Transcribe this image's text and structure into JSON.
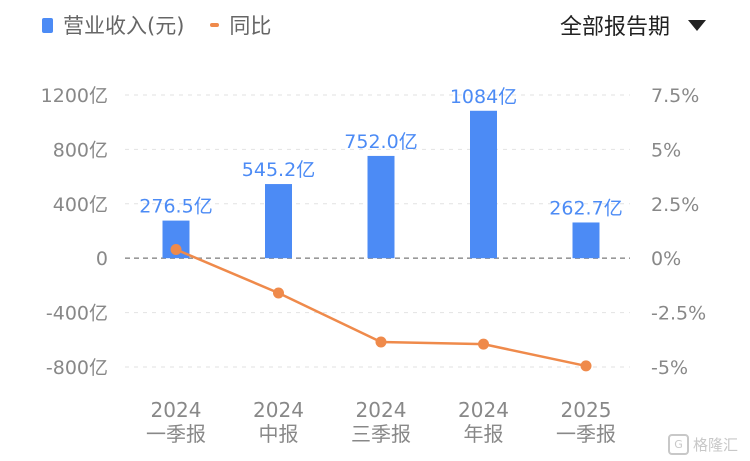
{
  "legend": {
    "revenue": {
      "label": "营业收入(元)",
      "color": "#4c8bf5",
      "icon": "bar-swatch"
    },
    "yoy": {
      "label": "同比",
      "color": "#ef8a4b",
      "icon": "line-swatch"
    }
  },
  "period_selector": {
    "label": "全部报告期",
    "icon": "caret-down-icon"
  },
  "watermark": {
    "icon": "gelonghui-logo-icon",
    "text": "格隆汇"
  },
  "chart_data": {
    "type": "bar",
    "categories": [
      {
        "line1": "2024",
        "line2": "一季报"
      },
      {
        "line1": "2024",
        "line2": "中报"
      },
      {
        "line1": "2024",
        "line2": "三季报"
      },
      {
        "line1": "2024",
        "line2": "年报"
      },
      {
        "line1": "2025",
        "line2": "一季报"
      }
    ],
    "series": [
      {
        "name": "营业收入(元)",
        "type": "bar",
        "axis": "left",
        "values": [
          276.5,
          545.2,
          752.0,
          1084,
          262.7
        ],
        "data_labels": [
          "276.5亿",
          "545.2亿",
          "752.0亿",
          "1084亿",
          "262.7亿"
        ]
      },
      {
        "name": "同比",
        "type": "line",
        "axis": "right",
        "values": [
          0.4,
          -1.6,
          -3.85,
          -3.95,
          -4.95
        ]
      }
    ],
    "left_axis": {
      "range": [
        -800,
        1200
      ],
      "ticks": [
        1200,
        800,
        400,
        0,
        -400,
        -800
      ],
      "tick_labels": [
        "1200亿",
        "800亿",
        "400亿",
        "0",
        "-400亿",
        "-800亿"
      ]
    },
    "right_axis": {
      "range": [
        -5,
        7.5
      ],
      "ticks": [
        7.5,
        5,
        2.5,
        0,
        -2.5,
        -5
      ],
      "tick_labels": [
        "7.5%",
        "5%",
        "2.5%",
        "0%",
        "-2.5%",
        "-5%"
      ]
    },
    "grid": "dashed",
    "legend_position": "top-left",
    "colors": {
      "bar": "#4c8bf5",
      "line": "#ef8a4b",
      "label": "#4c8bf5",
      "axis_text": "#888888",
      "grid": "#e2e2e2",
      "zero_line": "#999999"
    }
  }
}
